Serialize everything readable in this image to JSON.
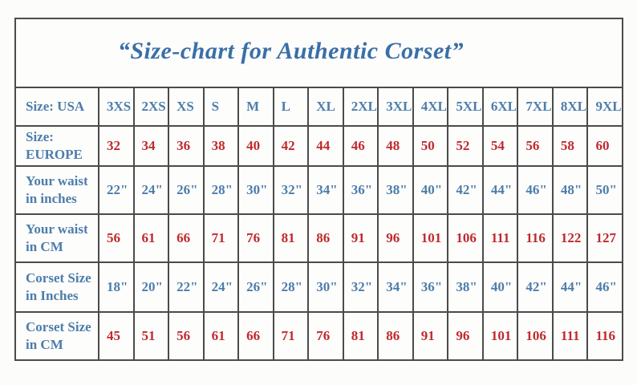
{
  "colors": {
    "title_blue": "#3a6fa8",
    "label_blue": "#4d7dab",
    "value_red": "#bf2a2e",
    "border": "#4b4b4b",
    "background": "#fcfcfa"
  },
  "chart_data": {
    "type": "table",
    "title": "“Size-chart for Authentic Corset”",
    "columns_per_row": 15,
    "rows": [
      {
        "header": "Size: USA",
        "value_color": "blue",
        "values": [
          "3XS",
          "2XS",
          "XS",
          "S",
          "M",
          "L",
          "XL",
          "2XL",
          "3XL",
          "4XL",
          "5XL",
          "6XL",
          "7XL",
          "8XL",
          "9XL"
        ]
      },
      {
        "header": "Size: EUROPE",
        "value_color": "red",
        "values": [
          "32",
          "34",
          "36",
          "38",
          "40",
          "42",
          "44",
          "46",
          "48",
          "50",
          "52",
          "54",
          "56",
          "58",
          "60"
        ]
      },
      {
        "header": "Your waist in inches",
        "value_color": "blue",
        "values": [
          "22\"",
          "24\"",
          "26\"",
          "28\"",
          "30\"",
          "32\"",
          "34\"",
          "36\"",
          "38\"",
          "40\"",
          "42\"",
          "44\"",
          "46\"",
          "48\"",
          "50\""
        ]
      },
      {
        "header": "Your waist in CM",
        "value_color": "red",
        "values": [
          "56",
          "61",
          "66",
          "71",
          "76",
          "81",
          "86",
          "91",
          "96",
          "101",
          "106",
          "111",
          "116",
          "122",
          "127"
        ]
      },
      {
        "header": "Corset Size in Inches",
        "value_color": "blue",
        "values": [
          "18\"",
          "20\"",
          "22\"",
          "24\"",
          "26\"",
          "28\"",
          "30\"",
          "32\"",
          "34\"",
          "36\"",
          "38\"",
          "40\"",
          "42\"",
          "44\"",
          "46\""
        ]
      },
      {
        "header": "Corset Size in CM",
        "value_color": "red",
        "values": [
          "45",
          "51",
          "56",
          "61",
          "66",
          "71",
          "76",
          "81",
          "86",
          "91",
          "96",
          "101",
          "106",
          "111",
          "116"
        ]
      }
    ]
  }
}
